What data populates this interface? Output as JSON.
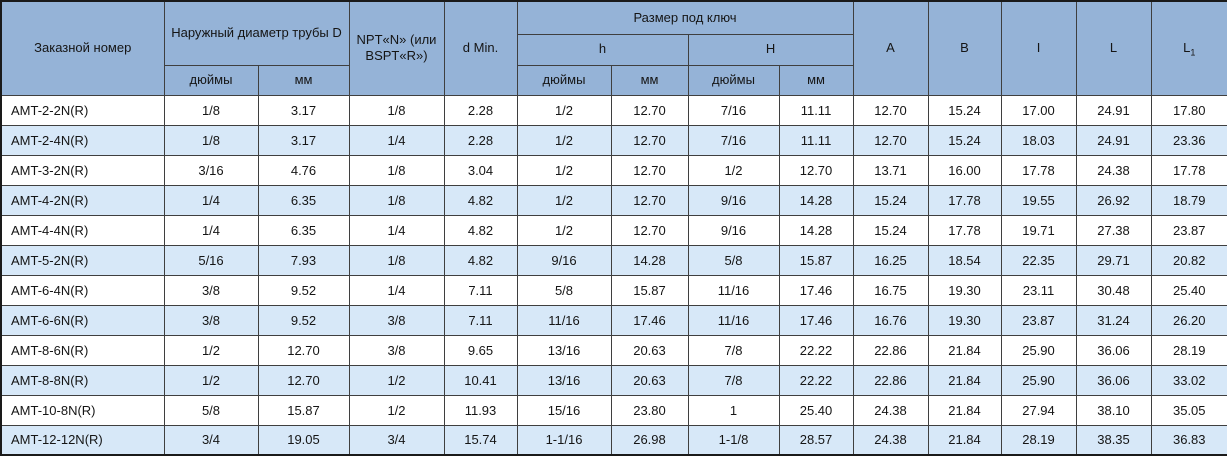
{
  "table": {
    "header": {
      "order_number": "Заказной номер",
      "outer_diameter_title": "Наружный диаметр трубы D",
      "npt_title": "NPT«N» (или BSPT«R»)",
      "d_min": "d Min.",
      "wrench_size_title": "Размер под ключ",
      "h_small": "h",
      "h_big": "H",
      "inches": "дюймы",
      "mm": "мм",
      "col_a": "A",
      "col_b": "B",
      "col_i": "I",
      "col_l": "L",
      "col_l1_base": "L",
      "col_l1_sub": "1"
    },
    "rows": [
      [
        "AMT-2-2N(R)",
        "1/8",
        "3.17",
        "1/8",
        "2.28",
        "1/2",
        "12.70",
        "7/16",
        "11.11",
        "12.70",
        "15.24",
        "17.00",
        "24.91",
        "17.80"
      ],
      [
        "AMT-2-4N(R)",
        "1/8",
        "3.17",
        "1/4",
        "2.28",
        "1/2",
        "12.70",
        "7/16",
        "11.11",
        "12.70",
        "15.24",
        "18.03",
        "24.91",
        "23.36"
      ],
      [
        "AMT-3-2N(R)",
        "3/16",
        "4.76",
        "1/8",
        "3.04",
        "1/2",
        "12.70",
        "1/2",
        "12.70",
        "13.71",
        "16.00",
        "17.78",
        "24.38",
        "17.78"
      ],
      [
        "AMT-4-2N(R)",
        "1/4",
        "6.35",
        "1/8",
        "4.82",
        "1/2",
        "12.70",
        "9/16",
        "14.28",
        "15.24",
        "17.78",
        "19.55",
        "26.92",
        "18.79"
      ],
      [
        "AMT-4-4N(R)",
        "1/4",
        "6.35",
        "1/4",
        "4.82",
        "1/2",
        "12.70",
        "9/16",
        "14.28",
        "15.24",
        "17.78",
        "19.71",
        "27.38",
        "23.87"
      ],
      [
        "AMT-5-2N(R)",
        "5/16",
        "7.93",
        "1/8",
        "4.82",
        "9/16",
        "14.28",
        "5/8",
        "15.87",
        "16.25",
        "18.54",
        "22.35",
        "29.71",
        "20.82"
      ],
      [
        "AMT-6-4N(R)",
        "3/8",
        "9.52",
        "1/4",
        "7.11",
        "5/8",
        "15.87",
        "11/16",
        "17.46",
        "16.75",
        "19.30",
        "23.11",
        "30.48",
        "25.40"
      ],
      [
        "AMT-6-6N(R)",
        "3/8",
        "9.52",
        "3/8",
        "7.11",
        "11/16",
        "17.46",
        "11/16",
        "17.46",
        "16.76",
        "19.30",
        "23.87",
        "31.24",
        "26.20"
      ],
      [
        "AMT-8-6N(R)",
        "1/2",
        "12.70",
        "3/8",
        "9.65",
        "13/16",
        "20.63",
        "7/8",
        "22.22",
        "22.86",
        "21.84",
        "25.90",
        "36.06",
        "28.19"
      ],
      [
        "AMT-8-8N(R)",
        "1/2",
        "12.70",
        "1/2",
        "10.41",
        "13/16",
        "20.63",
        "7/8",
        "22.22",
        "22.86",
        "21.84",
        "25.90",
        "36.06",
        "33.02"
      ],
      [
        "AMT-10-8N(R)",
        "5/8",
        "15.87",
        "1/2",
        "11.93",
        "15/16",
        "23.80",
        "1",
        "25.40",
        "24.38",
        "21.84",
        "27.94",
        "38.10",
        "35.05"
      ],
      [
        "AMT-12-12N(R)",
        "3/4",
        "19.05",
        "3/4",
        "15.74",
        "1-1/16",
        "26.98",
        "1-1/8",
        "28.57",
        "24.38",
        "21.84",
        "28.19",
        "38.35",
        "36.83"
      ]
    ]
  },
  "colors": {
    "header_bg": "#95b3d7",
    "row_alt_bg": "#d7e8f8",
    "border": "#3f3f3f"
  }
}
